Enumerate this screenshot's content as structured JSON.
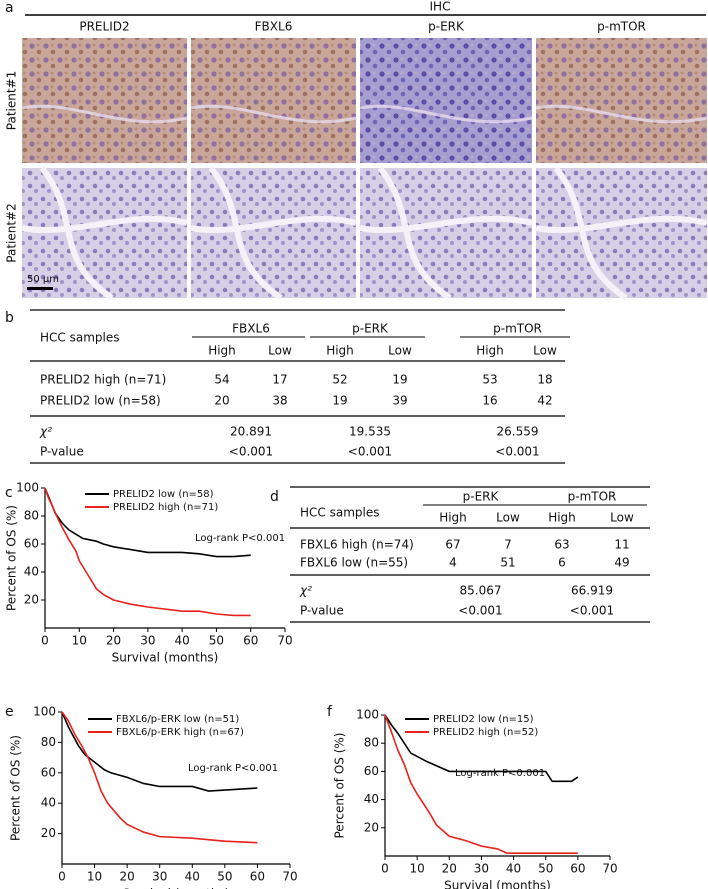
{
  "panel_labels": [
    "a",
    "b",
    "c",
    "d",
    "e",
    "f"
  ],
  "ihc": {
    "title": "IHC",
    "columns": [
      "PRELID2",
      "FBXL6",
      "p-ERK",
      "p-mTOR"
    ],
    "rows": [
      "Patient#1",
      "Patient#2"
    ],
    "scale_bar": "50 μm"
  },
  "table_b": {
    "header": "HCC samples",
    "groups": [
      "FBXL6",
      "p-ERK",
      "p-mTOR"
    ],
    "sub": [
      "High",
      "Low",
      "High",
      "Low",
      "High",
      "Low"
    ],
    "rows": [
      {
        "label": "PRELID2 high (n=71)",
        "values": [
          54,
          17,
          52,
          19,
          53,
          18
        ]
      },
      {
        "label": "PRELID2 low (n=58)",
        "values": [
          20,
          38,
          19,
          39,
          16,
          42
        ]
      }
    ],
    "chi_label": "χ²",
    "chi": [
      20.891,
      19.535,
      26.559
    ],
    "p_label": "P-value",
    "p": [
      "<0.001",
      "<0.001",
      "<0.001"
    ]
  },
  "table_d": {
    "header": "HCC samples",
    "groups": [
      "p-ERK",
      "p-mTOR"
    ],
    "sub": [
      "High",
      "Low",
      "High",
      "Low"
    ],
    "rows": [
      {
        "label": "FBXL6 high (n=74)",
        "values": [
          67,
          7,
          63,
          11
        ]
      },
      {
        "label": "FBXL6 low (n=55)",
        "values": [
          4,
          51,
          6,
          49
        ]
      }
    ],
    "chi_label": "χ²",
    "chi": [
      85.067,
      66.919
    ],
    "p_label": "P-value",
    "p": [
      "<0.001",
      "<0.001"
    ]
  },
  "chart_data": [
    {
      "type": "line",
      "x_label": "Survival (months)",
      "y_label": "Percent of OS (%)",
      "annotation": "Log-rank P<0.001",
      "xlim": [
        0,
        70
      ],
      "xticks": [
        0,
        10,
        20,
        30,
        40,
        50,
        60,
        70
      ],
      "ylim": [
        0,
        100
      ],
      "yticks": [
        20,
        40,
        60,
        80,
        100
      ],
      "series": [
        {
          "name": "PRELID2 low (n=58)",
          "color": "#000000",
          "x": [
            0,
            2,
            3,
            5,
            7,
            9,
            11,
            13,
            15,
            17,
            20,
            25,
            30,
            40,
            45,
            50,
            55,
            60
          ],
          "values": [
            100,
            88,
            82,
            75,
            70,
            67,
            64,
            63,
            62,
            60,
            58,
            56,
            54,
            54,
            53,
            51,
            51,
            52
          ]
        },
        {
          "name": "PRELID2 high (n=71)",
          "color": "#e8221c",
          "x": [
            0,
            1,
            2,
            3,
            5,
            7,
            9,
            10,
            12,
            14,
            15,
            17,
            20,
            25,
            30,
            40,
            45,
            50,
            55,
            60
          ],
          "values": [
            100,
            93,
            88,
            82,
            72,
            63,
            55,
            48,
            40,
            32,
            28,
            24,
            20,
            17,
            15,
            12,
            12,
            10,
            9,
            9
          ]
        }
      ]
    },
    {
      "type": "line",
      "x_label": "Survival (months)",
      "y_label": "Percent of OS (%)",
      "annotation": "Log-rank P<0.001",
      "xlim": [
        0,
        70
      ],
      "xticks": [
        0,
        10,
        20,
        30,
        40,
        50,
        60,
        70
      ],
      "ylim": [
        0,
        100
      ],
      "yticks": [
        20,
        40,
        60,
        80,
        100
      ],
      "series": [
        {
          "name": "FBXL6/p-ERK low (n=51)",
          "color": "#000000",
          "x": [
            0,
            2,
            5,
            7,
            10,
            13,
            15,
            20,
            25,
            30,
            40,
            45,
            60
          ],
          "values": [
            100,
            90,
            78,
            72,
            67,
            62,
            60,
            57,
            53,
            51,
            51,
            48,
            50
          ]
        },
        {
          "name": "FBXL6/p-ERK high (n=67)",
          "color": "#e8221c",
          "x": [
            0,
            2,
            4,
            6,
            8,
            10,
            12,
            14,
            16,
            18,
            20,
            25,
            30,
            40,
            50,
            60
          ],
          "values": [
            100,
            94,
            85,
            78,
            70,
            60,
            48,
            40,
            35,
            30,
            26,
            21,
            18,
            17,
            15,
            14
          ]
        }
      ]
    },
    {
      "type": "line",
      "x_label": "Survival (months)",
      "y_label": "Percent of OS (%)",
      "annotation": "Log-rank P<0.001",
      "xlim": [
        0,
        70
      ],
      "xticks": [
        0,
        10,
        20,
        30,
        40,
        50,
        60,
        70
      ],
      "ylim": [
        0,
        100
      ],
      "yticks": [
        20,
        40,
        60,
        80,
        100
      ],
      "series": [
        {
          "name": "PRELID2 low (n=15)",
          "color": "#000000",
          "x": [
            0,
            2,
            4,
            6,
            8,
            13,
            20,
            30,
            40,
            50,
            52,
            58,
            60
          ],
          "values": [
            100,
            93,
            87,
            80,
            73,
            67,
            60,
            60,
            60,
            60,
            53,
            53,
            56
          ]
        },
        {
          "name": "PRELID2 high (n=52)",
          "color": "#e8221c",
          "x": [
            0,
            2,
            4,
            6,
            8,
            10,
            12,
            14,
            16,
            18,
            20,
            25,
            30,
            35,
            38,
            45,
            60
          ],
          "values": [
            100,
            88,
            75,
            65,
            52,
            44,
            37,
            30,
            22,
            18,
            14,
            11,
            7,
            5,
            2,
            2,
            2
          ]
        }
      ]
    }
  ]
}
